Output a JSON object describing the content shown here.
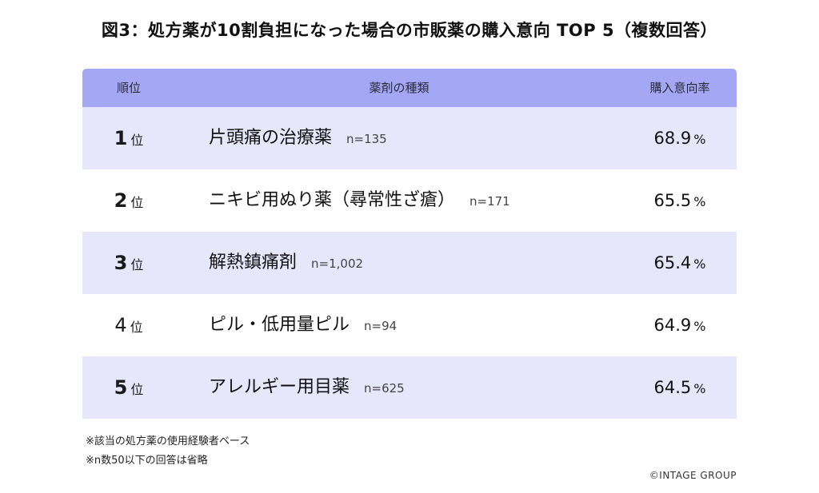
{
  "title": "図3：処方薬が10割負担になった場合の市販薬の購入意向 TOP 5（複数回答）",
  "header": {
    "rank": "順位",
    "type": "薬剤の種類",
    "rate": "購入意向率"
  },
  "rank_unit": "位",
  "percent_unit": "%",
  "chart_data": {
    "type": "table",
    "title": "図3：処方薬が10割負担になった場合の市販薬の購入意向 TOP 5（複数回答）",
    "columns": [
      "順位",
      "薬剤の種類",
      "購入意向率"
    ],
    "rows": [
      {
        "rank": "1",
        "name": "片頭痛の治療薬",
        "n": "n=135",
        "rate": "68.9",
        "bold_rank": true
      },
      {
        "rank": "2",
        "name": "ニキビ用ぬり薬（尋常性ざ瘡）",
        "n": "n=171",
        "rate": "65.5",
        "bold_rank": true
      },
      {
        "rank": "3",
        "name": "解熱鎮痛剤",
        "n": "n=1,002",
        "rate": "65.4",
        "bold_rank": true
      },
      {
        "rank": "4",
        "name": "ピル・低用量ピル",
        "n": "n=94",
        "rate": "64.9",
        "bold_rank": false
      },
      {
        "rank": "5",
        "name": "アレルギー用目薬",
        "n": "n=625",
        "rate": "64.5",
        "bold_rank": true
      }
    ]
  },
  "notes": [
    "※該当の処方薬の使用経験者ベース",
    "※n数50以下の回答は省略"
  ],
  "copyright": "©INTAGE GROUP",
  "colors": {
    "header_bg": "#a4a8f4",
    "row_alt_bg": "#e6e7fb"
  }
}
